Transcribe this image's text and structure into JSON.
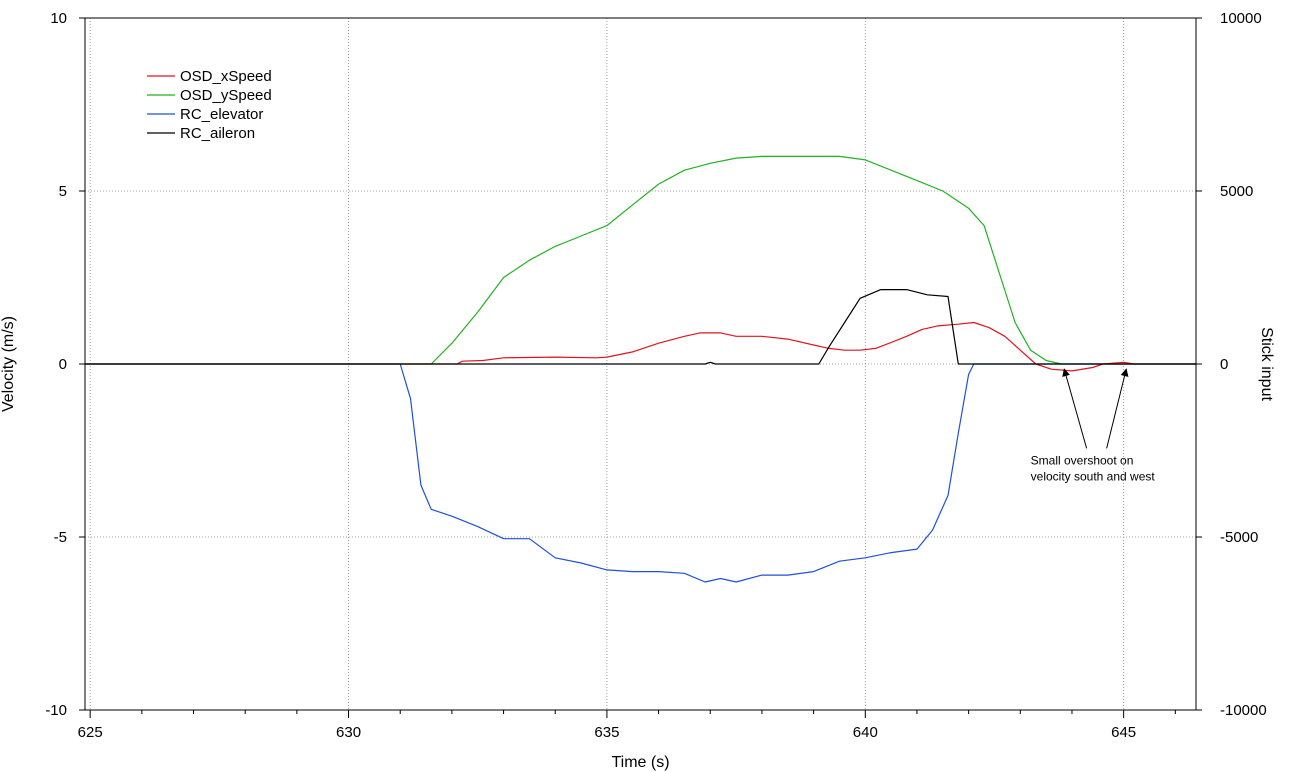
{
  "chart_data": {
    "type": "line",
    "title": "",
    "xlabel": "Time (s)",
    "ylabel_left": "Velocity (m/s)",
    "ylabel_right": "Stick input",
    "xlim": [
      624.9,
      646.4
    ],
    "ylim_left": [
      -10,
      10
    ],
    "ylim_right": [
      -10000,
      10000
    ],
    "x_ticks": [
      625,
      630,
      635,
      640,
      645
    ],
    "y_left_ticks": [
      10,
      5,
      0,
      -5,
      -10
    ],
    "y_right_ticks": [
      10000,
      5000,
      0,
      -5000,
      -10000
    ],
    "x_tick_labels": [
      "625",
      "630",
      "635",
      "640",
      "645"
    ],
    "y_left_tick_labels": [
      "10",
      "5",
      "0",
      "-5",
      "-10"
    ],
    "y_right_tick_labels": [
      "10000",
      "5000",
      "0",
      "-5000",
      "-10000"
    ],
    "grid": true,
    "legend_position": "top-left",
    "series": [
      {
        "name": "OSD_xSpeed",
        "axis": "left",
        "color": "#e0141e",
        "x": [
          624.9,
          632.1,
          632.2,
          632.6,
          633.0,
          634.0,
          634.8,
          635.0,
          635.5,
          636.0,
          636.5,
          636.8,
          637.2,
          637.5,
          638.0,
          638.5,
          639.0,
          639.3,
          639.6,
          639.9,
          640.2,
          640.5,
          640.8,
          641.1,
          641.4,
          641.8,
          642.1,
          642.4,
          642.7,
          643.0,
          643.3,
          643.6,
          644.0,
          644.4,
          644.6,
          645.0,
          645.2,
          645.4,
          646.4
        ],
        "y": [
          0.0,
          0.0,
          0.08,
          0.1,
          0.18,
          0.2,
          0.18,
          0.2,
          0.35,
          0.6,
          0.8,
          0.9,
          0.9,
          0.8,
          0.8,
          0.72,
          0.55,
          0.45,
          0.4,
          0.4,
          0.45,
          0.62,
          0.8,
          1.0,
          1.1,
          1.15,
          1.2,
          1.05,
          0.8,
          0.4,
          0.0,
          -0.15,
          -0.2,
          -0.1,
          0.0,
          0.05,
          0.0,
          0.0,
          0.0
        ]
      },
      {
        "name": "OSD_ySpeed",
        "axis": "left",
        "color": "#1eb41e",
        "x": [
          624.9,
          631.6,
          632.0,
          632.5,
          633.0,
          633.5,
          634.0,
          634.5,
          635.0,
          635.5,
          636.0,
          636.5,
          637.0,
          637.5,
          638.0,
          638.5,
          639.0,
          639.5,
          640.0,
          640.5,
          641.0,
          641.5,
          642.0,
          642.3,
          642.6,
          642.9,
          643.2,
          643.5,
          643.8,
          644.0,
          646.4
        ],
        "y": [
          0.0,
          0.0,
          0.6,
          1.5,
          2.5,
          3.0,
          3.4,
          3.7,
          4.0,
          4.6,
          5.2,
          5.6,
          5.8,
          5.95,
          6.0,
          6.0,
          6.0,
          6.0,
          5.9,
          5.6,
          5.3,
          5.0,
          4.5,
          4.0,
          2.6,
          1.2,
          0.4,
          0.1,
          0.0,
          0.0,
          0.0
        ]
      },
      {
        "name": "RC_elevator",
        "axis": "right",
        "color": "#1e50dc",
        "x": [
          624.9,
          631.0,
          631.2,
          631.4,
          631.6,
          632.0,
          632.5,
          633.0,
          633.5,
          634.0,
          634.5,
          635.0,
          635.5,
          636.0,
          636.5,
          636.9,
          637.2,
          637.5,
          638.0,
          638.5,
          639.0,
          639.5,
          640.0,
          640.5,
          641.0,
          641.3,
          641.6,
          641.8,
          642.0,
          642.1,
          646.4
        ],
        "y": [
          0,
          0,
          -1000,
          -3500,
          -4200,
          -4400,
          -4700,
          -5050,
          -5050,
          -5600,
          -5750,
          -5950,
          -6000,
          -6000,
          -6050,
          -6300,
          -6200,
          -6300,
          -6100,
          -6100,
          -6000,
          -5700,
          -5600,
          -5450,
          -5350,
          -4800,
          -3800,
          -2000,
          -300,
          0,
          0
        ]
      },
      {
        "name": "RC_aileron",
        "axis": "right",
        "color": "#000000",
        "x": [
          624.9,
          636.9,
          637.0,
          637.1,
          639.1,
          639.3,
          639.6,
          639.9,
          640.3,
          640.8,
          641.2,
          641.6,
          641.8,
          646.4
        ],
        "y": [
          0,
          0,
          50,
          0,
          0,
          500,
          1200,
          1900,
          2150,
          2150,
          2000,
          1950,
          0,
          0
        ]
      }
    ],
    "annotations": [
      {
        "lines": [
          "Small overshoot on",
          "velocity south and west"
        ],
        "text_x": 643.2,
        "text_y": -2.9,
        "arrows_to": [
          [
            643.85,
            -0.15
          ],
          [
            645.05,
            -0.15
          ]
        ]
      }
    ]
  }
}
